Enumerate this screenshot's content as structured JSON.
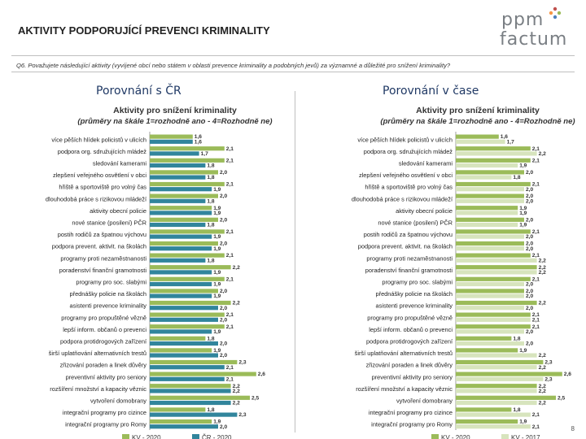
{
  "header": {
    "title": "AKTIVITY PODPORUJÍCÍ PREVENCI KRIMINALITY",
    "logo_line1": "ppm",
    "logo_line2": "factum",
    "question": "Q6. Považujete následující aktivity (vyvíjené obcí nebo státem v oblasti prevence kriminality a podobných jevů) za významné a důležité pro snížení kriminality?"
  },
  "sections": {
    "left_heading": "Porovnání s ČR",
    "right_heading": "Porovnání v čase"
  },
  "page_number": "8",
  "colors": {
    "kv2020": "#9bbb59",
    "cr2020": "#31859c",
    "kv2017": "#d7e4bd",
    "heading": "#1f3864"
  },
  "chart_data": [
    {
      "type": "bar",
      "orientation": "horizontal",
      "title": "Aktivity pro snížení kriminality",
      "subtitle": "(průměry na škále 1=rozhodně ano - 4=Rozhodně ne)",
      "xlim": [
        0,
        4
      ],
      "categories": [
        "více pěších hlídek policistů v ulicích",
        "podpora org. sdružujících mládež",
        "sledování kamerami",
        "zlepšení veřejného osvětlení v obci",
        "hřiště a sportoviště pro volný čas",
        "dlouhodobá práce s rizikovou mládeží",
        "aktivity obecní policie",
        "nové stanice (posilení) PČR",
        "postih rodičů za špatnou výchovu",
        "podpora prevent. aktivit. na školách",
        "programy proti nezaměstnanosti",
        "poradenství finanční gramotnosti",
        "programy pro soc. slabými",
        "přednášky policie na školách",
        "asistenti prevence kriminality",
        "programy pro propuštěné vězně",
        "lepší inform. občanů o prevenci",
        "podpora protidrogových zařízení",
        "širší uplatňování alternativních trestů",
        "zřizování poraden a linek důvěry",
        "preventivní aktivity pro seniory",
        "rozšíření množství a kapacity věznic",
        "vytvoření domobrany",
        "integrační programy pro cizince",
        "integrační programy pro Romy"
      ],
      "series": [
        {
          "name": "KV - 2020",
          "color_key": "kv2020",
          "values": [
            1.6,
            2.1,
            2.1,
            2.0,
            2.1,
            2.0,
            1.9,
            2.0,
            2.1,
            2.0,
            2.1,
            2.2,
            2.1,
            2.0,
            2.2,
            2.1,
            2.1,
            1.8,
            1.9,
            2.3,
            2.6,
            2.2,
            2.5,
            1.8,
            1.9
          ]
        },
        {
          "name": "ČR - 2020",
          "color_key": "cr2020",
          "values": [
            1.6,
            1.7,
            1.8,
            1.8,
            1.9,
            1.8,
            1.9,
            1.8,
            1.9,
            1.9,
            1.8,
            1.9,
            1.9,
            1.9,
            2.0,
            2.0,
            1.9,
            2.0,
            2.0,
            2.1,
            2.1,
            2.2,
            2.2,
            2.3,
            2.0
          ]
        }
      ]
    },
    {
      "type": "bar",
      "orientation": "horizontal",
      "title": "Aktivity pro snížení kriminality",
      "subtitle": "(průměry na škále 1=rozhodně ano - 4=Rozhodně ne)",
      "xlim": [
        0,
        4
      ],
      "categories": [
        "více pěších hlídek policistů v ulicích",
        "podpora org. sdružujících mládež",
        "sledování kamerami",
        "zlepšení veřejného osvětlení v obci",
        "hřiště a sportoviště pro volný čas",
        "dlouhodobá práce s rizikovou mládeží",
        "aktivity obecní policie",
        "nové stanice (posilení) PČR",
        "postih rodičů za špatnou výchovu",
        "podpora prevent. aktivit. na školách",
        "programy proti nezaměstnanosti",
        "poradenství finanční gramotnosti",
        "programy pro soc. slabými",
        "přednášky policie na školách",
        "asistenti prevence kriminality",
        "programy pro propuštěné vězně",
        "lepší inform. občanů o prevenci",
        "podpora protidrogových zařízení",
        "širší uplatňování alternativních trestů",
        "zřizování poraden a linek důvěry",
        "preventivní aktivity pro seniory",
        "rozšíření množství a kapacity věznic",
        "vytvoření domobrany",
        "integrační programy pro cizince",
        "integrační programy pro Romy"
      ],
      "series": [
        {
          "name": "KV - 2020",
          "color_key": "kv2020",
          "values": [
            1.6,
            2.1,
            2.1,
            2.0,
            2.1,
            2.0,
            1.9,
            2.0,
            2.1,
            2.0,
            2.1,
            2.2,
            2.1,
            2.0,
            2.2,
            2.1,
            2.1,
            1.8,
            1.9,
            2.3,
            2.6,
            2.2,
            2.5,
            1.8,
            1.9
          ]
        },
        {
          "name": "KV - 2017",
          "color_key": "kv2017",
          "values": [
            1.7,
            2.2,
            1.9,
            1.8,
            2.0,
            2.0,
            1.9,
            1.9,
            2.0,
            2.0,
            2.2,
            2.2,
            2.0,
            2.0,
            2.0,
            2.1,
            2.0,
            2.0,
            2.2,
            2.2,
            2.3,
            2.2,
            2.2,
            2.1,
            2.1
          ]
        }
      ]
    }
  ]
}
